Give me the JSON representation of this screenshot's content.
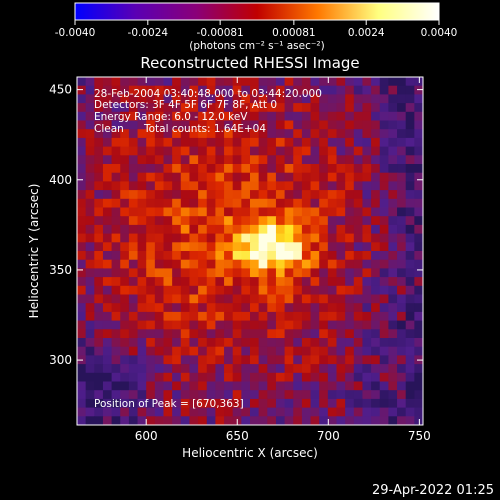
{
  "chart_data": {
    "type": "heatmap",
    "title": "Reconstructed RHESSI Image",
    "xlabel": "Heliocentric X (arcsec)",
    "ylabel": "Heliocentric Y (arcsec)",
    "xlim": [
      562,
      752
    ],
    "ylim": [
      264,
      457
    ],
    "x_ticks": [
      600,
      650,
      700,
      750
    ],
    "y_ticks": [
      300,
      350,
      400,
      450
    ],
    "colorbar": {
      "range": [
        -0.004,
        0.004
      ],
      "tick_values": [
        -0.004,
        -0.0024,
        -0.00081,
        0.00081,
        0.0024,
        0.004
      ],
      "tick_labels": [
        "-0.0040",
        "-0.0024",
        "-0.00081",
        "0.00081",
        "0.0024",
        "0.0040"
      ],
      "units_label": "(photons cm⁻² s⁻¹ asec⁻²)",
      "stops": [
        "#0000ff",
        "#5a00b4",
        "#8a0078",
        "#c00000",
        "#ff7800",
        "#ffff80",
        "#ffffff"
      ]
    },
    "annotations": {
      "line1": "28-Feb-2004 03:40:48.000 to 03:44:20.000",
      "line2": "Detectors: 3F 4F 5F 6F 7F 8F, Att 0",
      "line3": "Energy Range: 6.0 - 12.0 keV",
      "line4_a": "Clean",
      "line4_b": "Total counts: 1.64E+04",
      "peak": "Position of Peak = [670,363]"
    },
    "peak_position": [
      670,
      363
    ],
    "grid": false
  },
  "footer": {
    "timestamp": "29-Apr-2022 01:25"
  }
}
